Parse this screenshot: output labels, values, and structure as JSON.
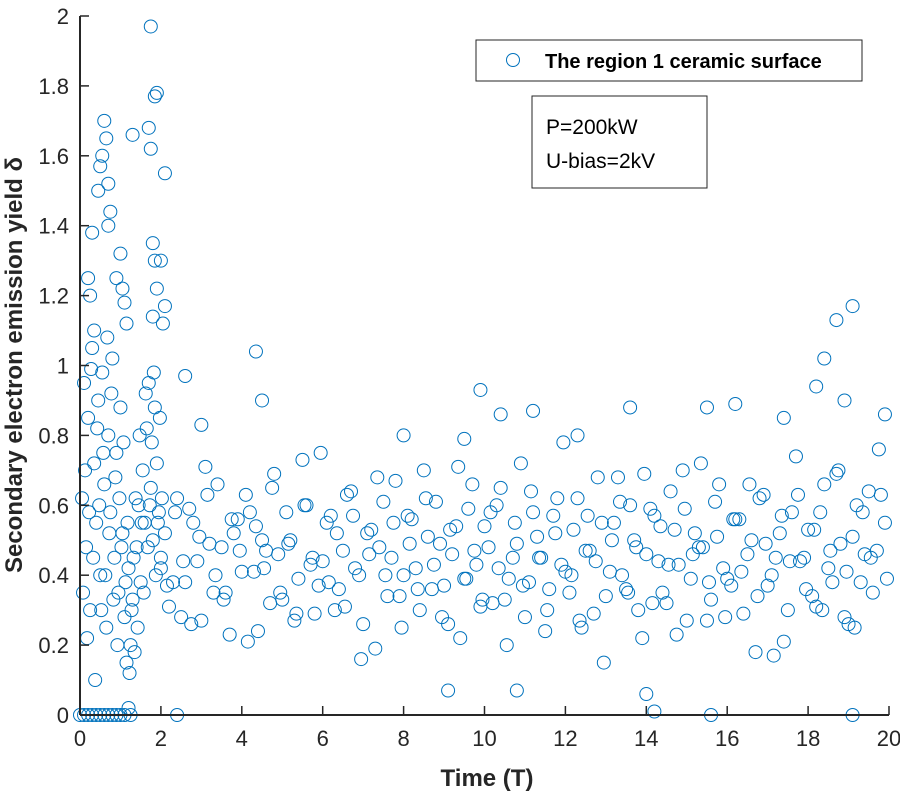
{
  "chart_data": {
    "type": "scatter",
    "title": "",
    "xlabel": "Time (T)",
    "ylabel": "Secondary electron emission yield δ",
    "xlim": [
      0,
      20
    ],
    "ylim": [
      0,
      2
    ],
    "xticks": [
      "0",
      "2",
      "4",
      "6",
      "8",
      "10",
      "12",
      "14",
      "16",
      "18",
      "20"
    ],
    "yticks": [
      "0",
      "0.2",
      "0.4",
      "0.6",
      "0.8",
      "1",
      "1.2",
      "1.4",
      "1.6",
      "1.8",
      "2"
    ],
    "grid": false,
    "marker": "open-circle",
    "color": "#0072BD",
    "legend": {
      "position": "top-right",
      "entries": [
        "The region 1 ceramic surface"
      ]
    },
    "annotation": [
      "P=200kW",
      "U-bias=2kV"
    ],
    "series": [
      {
        "name": "The region 1 ceramic surface",
        "blocks": [
          {
            "x": [
              2,
              2.2,
              2.4,
              2.6,
              2.8,
              3,
              3.2,
              3.4,
              3.6,
              3.8,
              4,
              4.2,
              4.4,
              4.6,
              4.8,
              5,
              5.2,
              5.4,
              5.6,
              5.8,
              6,
              6.2,
              6.4,
              6.6,
              6.8,
              7,
              7.2,
              7.4,
              7.6,
              7.8,
              8,
              8.2,
              8.4,
              8.6,
              8.8,
              9,
              9.2,
              9.4,
              9.6,
              9.8,
              10,
              10.2,
              10.4,
              10.6,
              10.8,
              11,
              11.2,
              11.4,
              11.6,
              11.8,
              12,
              12.2,
              12.4,
              12.6,
              12.8,
              13,
              13.2,
              13.4,
              13.6,
              13.8,
              14,
              14.2,
              14.4,
              14.6,
              14.8,
              15,
              15.2,
              15.4,
              15.6,
              15.8,
              16,
              16.2,
              16.4,
              16.6,
              16.8,
              17,
              17.2,
              17.4,
              17.6,
              17.8,
              18,
              18.2,
              18.4,
              18.6,
              18.8,
              19,
              19.2,
              19.4,
              19.6,
              19.8
            ],
            "y": [
              0.45,
              0.31,
              0.62,
              0.38,
              0.55,
              0.27,
              0.49,
              0.66,
              0.35,
              0.52,
              0.41,
              0.58,
              0.24,
              0.47,
              0.69,
              0.33,
              0.5,
              0.39,
              0.6,
              0.29,
              0.44,
              0.57,
              0.36,
              0.63,
              0.42,
              0.26,
              0.53,
              0.48,
              0.34,
              0.67,
              0.4,
              0.56,
              0.3,
              0.51,
              0.61,
              0.37,
              0.46,
              0.22,
              0.59,
              0.43,
              0.54,
              0.32,
              0.65,
              0.39,
              0.49,
              0.28,
              0.58,
              0.45,
              0.36,
              0.62,
              0.41,
              0.53,
              0.25,
              0.47,
              0.68,
              0.34,
              0.55,
              0.4,
              0.6,
              0.3,
              0.46,
              0.57,
              0.35,
              0.64,
              0.43,
              0.27,
              0.52,
              0.48,
              0.33,
              0.66,
              0.39,
              0.56,
              0.29,
              0.5,
              0.62,
              0.37,
              0.45,
              0.21,
              0.58,
              0.44,
              0.53,
              0.31,
              0.66,
              0.38,
              0.49,
              0.26,
              0.6,
              0.46,
              0.35,
              0.63
            ]
          },
          {
            "x": [
              2.1,
              2.3,
              2.5,
              2.7,
              2.9,
              3.1,
              3.3,
              3.5,
              3.7,
              3.9,
              4.1,
              4.3,
              4.5,
              4.7,
              4.9,
              5.1,
              5.3,
              5.5,
              5.7,
              5.9,
              6.1,
              6.3,
              6.5,
              6.7,
              6.9,
              7.1,
              7.3,
              7.5,
              7.7,
              7.9,
              8.1,
              8.3,
              8.5,
              8.7,
              8.9,
              9.1,
              9.3,
              9.5,
              9.7,
              9.9,
              10.1,
              10.3,
              10.5,
              10.7,
              10.9,
              11.1,
              11.3,
              11.5,
              11.7,
              11.9,
              12.1,
              12.3,
              12.5,
              12.7,
              12.9,
              13.1,
              13.3,
              13.5,
              13.7,
              13.9,
              14.1,
              14.3,
              14.5,
              14.7,
              14.9,
              15.1,
              15.3,
              15.5,
              15.7,
              15.9,
              16.1,
              16.3,
              16.5,
              16.7,
              16.9,
              17.1,
              17.3,
              17.5,
              17.7,
              17.9,
              18.1,
              18.3,
              18.5,
              18.7,
              18.9,
              19.1,
              19.3,
              19.5,
              19.7,
              19.9
            ],
            "y": [
              0.52,
              0.38,
              0.28,
              0.59,
              0.44,
              0.71,
              0.35,
              0.48,
              0.23,
              0.56,
              0.63,
              0.41,
              0.5,
              0.32,
              0.46,
              0.58,
              0.27,
              0.73,
              0.43,
              0.37,
              0.55,
              0.3,
              0.47,
              0.64,
              0.4,
              0.52,
              0.19,
              0.61,
              0.45,
              0.34,
              0.57,
              0.42,
              0.7,
              0.36,
              0.49,
              0.26,
              0.54,
              0.39,
              0.66,
              0.31,
              0.48,
              0.6,
              0.33,
              0.45,
              0.72,
              0.38,
              0.51,
              0.24,
              0.57,
              0.43,
              0.35,
              0.62,
              0.47,
              0.29,
              0.55,
              0.41,
              0.68,
              0.36,
              0.5,
              0.22,
              0.59,
              0.44,
              0.32,
              0.53,
              0.7,
              0.39,
              0.48,
              0.27,
              0.61,
              0.42,
              0.37,
              0.56,
              0.46,
              0.18,
              0.63,
              0.4,
              0.52,
              0.3,
              0.74,
              0.45,
              0.34,
              0.58,
              0.42,
              0.69,
              0.28,
              0.51,
              0.38,
              0.64,
              0.47,
              0.55
            ]
          },
          {
            "x": [
              2.15,
              2.35,
              2.55,
              2.75,
              2.95,
              3.15,
              3.35,
              3.55,
              3.75,
              3.95,
              4.15,
              4.35,
              4.55,
              4.75,
              4.95,
              5.15,
              5.35,
              5.55,
              5.75,
              5.95,
              6.15,
              6.35,
              6.55,
              6.75,
              6.95,
              7.15,
              7.35,
              7.55,
              7.75,
              7.95,
              8.15,
              8.35,
              8.55,
              8.75,
              8.95,
              9.15,
              9.35,
              9.55,
              9.75,
              9.95,
              10.15,
              10.35,
              10.55,
              10.75,
              10.95,
              11.15,
              11.35,
              11.55,
              11.75,
              11.95,
              12.15,
              12.35,
              12.55,
              12.75,
              12.95,
              13.15,
              13.35,
              13.55,
              13.75,
              13.95,
              14.15,
              14.35,
              14.55,
              14.75,
              14.95,
              15.15,
              15.35,
              15.55,
              15.75,
              15.95,
              16.15,
              16.35,
              16.55,
              16.75,
              16.95,
              17.15,
              17.35,
              17.55,
              17.75,
              17.95,
              18.15,
              18.35,
              18.55,
              18.75,
              18.95,
              19.15,
              19.35,
              19.55,
              19.75,
              19.95
            ],
            "y": [
              0.37,
              0.58,
              0.44,
              0.26,
              0.51,
              0.63,
              0.4,
              0.33,
              0.56,
              0.47,
              0.21,
              0.54,
              0.42,
              0.65,
              0.35,
              0.49,
              0.29,
              0.6,
              0.45,
              0.75,
              0.38,
              0.52,
              0.31,
              0.57,
              0.16,
              0.46,
              0.68,
              0.4,
              0.55,
              0.25,
              0.49,
              0.36,
              0.62,
              0.43,
              0.28,
              0.53,
              0.71,
              0.39,
              0.47,
              0.33,
              0.58,
              0.42,
              0.2,
              0.55,
              0.37,
              0.64,
              0.45,
              0.3,
              0.52,
              0.78,
              0.4,
              0.27,
              0.57,
              0.44,
              0.15,
              0.5,
              0.61,
              0.35,
              0.48,
              0.69,
              0.32,
              0.54,
              0.43,
              0.23,
              0.59,
              0.46,
              0.72,
              0.38,
              0.51,
              0.28,
              0.56,
              0.41,
              0.66,
              0.34,
              0.49,
              0.17,
              0.57,
              0.44,
              0.63,
              0.36,
              0.53,
              0.3,
              0.47,
              0.7,
              0.41,
              0.25,
              0.58,
              0.45,
              0.76,
              0.39
            ]
          },
          {
            "x": [
              0.05,
              0.1,
              0.15,
              0.2,
              0.25,
              0.3,
              0.35,
              0.4,
              0.45,
              0.5,
              0.55,
              0.6,
              0.65,
              0.7,
              0.75,
              0.8,
              0.85,
              0.9,
              0.95,
              1.0,
              1.05,
              1.1,
              1.15,
              1.2,
              1.25,
              1.3,
              1.35,
              1.4,
              1.45,
              1.5,
              1.55,
              1.6,
              1.65,
              1.7,
              1.75,
              1.8,
              1.85,
              1.9,
              1.95,
              2.0
            ],
            "y": [
              0.62,
              0.95,
              0.48,
              0.85,
              0.3,
              1.05,
              0.72,
              0.55,
              0.9,
              0.4,
              0.98,
              0.66,
              0.25,
              0.8,
              0.58,
              1.02,
              0.45,
              0.75,
              0.35,
              0.88,
              0.52,
              0.28,
              0.15,
              0.42,
              0.2,
              0.33,
              0.18,
              0.48,
              0.6,
              0.38,
              0.7,
              0.55,
              0.82,
              0.95,
              0.65,
              0.5,
              0.88,
              0.72,
              0.58,
              0.42
            ]
          },
          {
            "x": [
              0.075,
              0.125,
              0.175,
              0.225,
              0.275,
              0.325,
              0.375,
              0.425,
              0.475,
              0.525,
              0.575,
              0.625,
              0.675,
              0.725,
              0.775,
              0.825,
              0.875,
              0.925,
              0.975,
              1.025,
              1.075,
              1.125,
              1.175,
              1.225,
              1.275,
              1.325,
              1.375,
              1.425,
              1.475,
              1.525,
              1.575,
              1.625,
              1.675,
              1.725,
              1.775,
              1.825,
              1.875,
              1.925,
              1.975,
              2.025
            ],
            "y": [
              0.35,
              0.7,
              0.22,
              0.58,
              0.99,
              0.45,
              0.1,
              0.82,
              0.6,
              0.3,
              0.75,
              0.4,
              1.08,
              0.52,
              0.92,
              0.33,
              0.68,
              0.2,
              0.62,
              0.48,
              0.78,
              0.38,
              0.55,
              0.12,
              0.3,
              0.45,
              0.62,
              0.25,
              0.8,
              0.55,
              0.35,
              0.92,
              0.48,
              0.6,
              0.78,
              0.98,
              0.4,
              0.55,
              0.85,
              0.62
            ]
          },
          {
            "x": [
              0,
              0.1,
              0.2,
              0.3,
              0.4,
              0.5,
              0.6,
              0.7,
              0.8,
              0.9,
              1.0,
              1.1,
              1.2,
              1.25,
              2.4,
              14.2,
              15.6,
              19.1
            ],
            "y": [
              0,
              0,
              0,
              0,
              0,
              0,
              0,
              0,
              0,
              0,
              0,
              0,
              0.02,
              0,
              0,
              0.01,
              0,
              0
            ]
          },
          {
            "x": [
              1.75,
              1.9,
              1.85,
              1.7,
              1.75,
              2.1,
              1.3,
              0.6,
              0.65,
              0.55,
              0.45,
              0.7,
              0.5,
              0.75,
              0.7,
              0.3,
              0.2,
              0.25,
              0.35,
              1.0,
              1.05,
              0.9,
              1.1,
              1.15,
              1.8,
              1.85,
              1.9,
              2.0,
              2.1,
              1.8,
              2.05,
              4.35,
              9.9,
              18.4,
              18.7,
              19.1,
              18.9,
              18.2,
              4.5,
              2.6,
              10.8,
              9.1,
              14.0,
              13.6,
              16.2,
              15.5,
              11.2,
              10.4,
              3.0,
              8.0,
              9.5,
              12.3,
              17.4,
              19.9
            ],
            "y": [
              1.97,
              1.78,
              1.77,
              1.68,
              1.62,
              1.55,
              1.66,
              1.7,
              1.65,
              1.6,
              1.5,
              1.52,
              1.57,
              1.44,
              1.4,
              1.38,
              1.25,
              1.2,
              1.1,
              1.32,
              1.22,
              1.25,
              1.18,
              1.12,
              1.35,
              1.3,
              1.22,
              1.3,
              1.17,
              1.14,
              1.12,
              1.04,
              0.93,
              1.02,
              1.13,
              1.17,
              0.9,
              0.94,
              0.9,
              0.97,
              0.07,
              0.07,
              0.06,
              0.88,
              0.89,
              0.88,
              0.87,
              0.86,
              0.83,
              0.8,
              0.79,
              0.8,
              0.85,
              0.86
            ]
          }
        ]
      }
    ]
  }
}
